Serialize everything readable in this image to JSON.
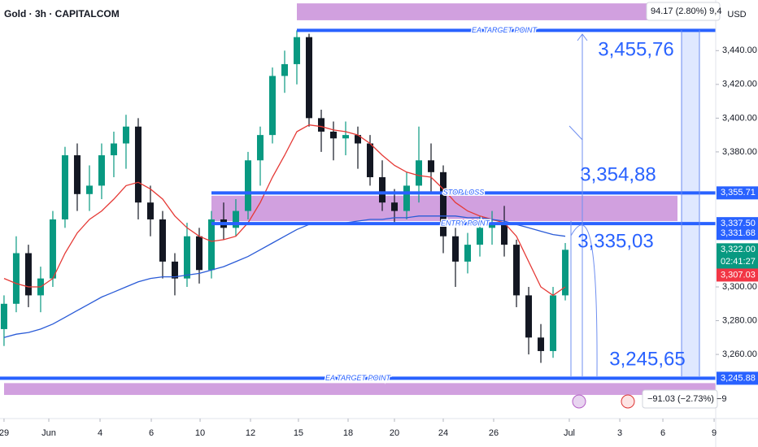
{
  "chart_data": {
    "type": "candlestick",
    "title": "Gold · 3h · CAPITALCOM",
    "currency": "USD",
    "top_change": "94.17 (2.80%) 9,4",
    "bottom_change": "−91.03 (−2.73%) −9",
    "ylim": [
      3222,
      3470
    ],
    "yticks": [
      {
        "value": 3260,
        "label": "3,260.00"
      },
      {
        "value": 3280,
        "label": "3,280.00"
      },
      {
        "value": 3300,
        "label": "3,300.00"
      },
      {
        "value": 3380,
        "label": "3,380.00"
      },
      {
        "value": 3400,
        "label": "3,400.00"
      },
      {
        "value": 3420,
        "label": "3,420.00"
      },
      {
        "value": 3440,
        "label": "3,440.00"
      }
    ],
    "xlim": [
      -0.33,
      58.33
    ],
    "xticks": [
      {
        "value": 0,
        "label": "29"
      },
      {
        "value": 3.67,
        "label": "Jun"
      },
      {
        "value": 7.87,
        "label": "4"
      },
      {
        "value": 12.07,
        "label": "6"
      },
      {
        "value": 16.07,
        "label": "10"
      },
      {
        "value": 20.2,
        "label": "12"
      },
      {
        "value": 24.13,
        "label": "15"
      },
      {
        "value": 28.2,
        "label": "18"
      },
      {
        "value": 32,
        "label": "20"
      },
      {
        "value": 36,
        "label": "24"
      },
      {
        "value": 40.13,
        "label": "26"
      },
      {
        "value": 46.33,
        "label": "Jul"
      },
      {
        "value": 50.47,
        "label": "3"
      },
      {
        "value": 54,
        "label": "6"
      },
      {
        "value": 58.2,
        "label": "9"
      }
    ],
    "up_color": "#089981",
    "down_color": "#131722",
    "ohlc": {
      "open": [
        3275,
        3290,
        3320,
        3295,
        3305,
        3340,
        3378,
        3355,
        3360,
        3378,
        3385,
        3395,
        3350,
        3340,
        3315,
        3305,
        3330,
        3310,
        3340,
        3335,
        3345,
        3375,
        3390,
        3425,
        3432,
        3448,
        3400,
        3392,
        3388,
        3390,
        3385,
        3365,
        3350,
        3345,
        3360,
        3375,
        3368,
        3330,
        3315,
        3325,
        3335,
        3338,
        3325,
        3295,
        3270,
        3262,
        3295
      ],
      "high": [
        3295,
        3330,
        3325,
        3312,
        3345,
        3383,
        3385,
        3372,
        3385,
        3392,
        3402,
        3400,
        3360,
        3345,
        3320,
        3338,
        3335,
        3345,
        3350,
        3352,
        3380,
        3395,
        3430,
        3440,
        3452,
        3450,
        3405,
        3398,
        3398,
        3395,
        3390,
        3375,
        3358,
        3368,
        3395,
        3385,
        3372,
        3335,
        3332,
        3342,
        3345,
        3348,
        3328,
        3300,
        3278,
        3300,
        3326
      ],
      "low": [
        3265,
        3285,
        3288,
        3285,
        3300,
        3335,
        3345,
        3345,
        3352,
        3365,
        3370,
        3340,
        3330,
        3305,
        3295,
        3300,
        3302,
        3305,
        3328,
        3330,
        3340,
        3360,
        3385,
        3415,
        3420,
        3395,
        3380,
        3375,
        3378,
        3370,
        3360,
        3345,
        3338,
        3340,
        3350,
        3355,
        3320,
        3300,
        3308,
        3318,
        3325,
        3318,
        3288,
        3260,
        3255,
        3258,
        3292
      ],
      "close": [
        3290,
        3320,
        3295,
        3305,
        3340,
        3378,
        3355,
        3360,
        3378,
        3385,
        3395,
        3350,
        3340,
        3315,
        3305,
        3330,
        3310,
        3340,
        3335,
        3345,
        3375,
        3390,
        3425,
        3432,
        3448,
        3400,
        3392,
        3388,
        3390,
        3385,
        3365,
        3350,
        3345,
        3360,
        3375,
        3368,
        3330,
        3315,
        3325,
        3335,
        3338,
        3325,
        3295,
        3270,
        3262,
        3295,
        3322
      ]
    },
    "lines": [
      {
        "color": "#e53935",
        "values": [
          3305,
          3302,
          3300,
          3300,
          3305,
          3320,
          3332,
          3340,
          3345,
          3352,
          3360,
          3362,
          3358,
          3352,
          3342,
          3335,
          3330,
          3327,
          3328,
          3330,
          3338,
          3350,
          3365,
          3378,
          3392,
          3396,
          3395,
          3393,
          3392,
          3390,
          3385,
          3378,
          3372,
          3368,
          3366,
          3365,
          3358,
          3350,
          3345,
          3342,
          3340,
          3338,
          3330,
          3315,
          3300,
          3295,
          3300
        ]
      },
      {
        "color": "#2a5bd7",
        "values": [
          3270,
          3272,
          3273,
          3275,
          3278,
          3282,
          3286,
          3290,
          3294,
          3297,
          3300,
          3303,
          3305,
          3306,
          3306,
          3307,
          3308,
          3310,
          3312,
          3315,
          3318,
          3322,
          3326,
          3330,
          3334,
          3337,
          3338,
          3338,
          3338,
          3339,
          3340,
          3340,
          3341,
          3341,
          3342,
          3342,
          3342,
          3342,
          3341,
          3341,
          3340,
          3339,
          3337,
          3335,
          3333,
          3331,
          3330
        ]
      }
    ],
    "zones": [
      {
        "from": 3458,
        "to": 3468,
        "color": "#c98fd9"
      },
      {
        "from": 3339,
        "to": 3354,
        "color": "#c98fd9"
      },
      {
        "from": 3236,
        "to": 3243,
        "color": "#c98fd9"
      }
    ],
    "levels": [
      {
        "value": 3452,
        "label": "EA TARGET POINT",
        "color": "#2962ff"
      },
      {
        "value": 3355.71,
        "label": "STOP LOSS",
        "color": "#2962ff"
      },
      {
        "value": 3337.5,
        "label": "ENTRY POINT",
        "color": "#2962ff"
      },
      {
        "value": 3245.88,
        "label": "EA TARGET POINT",
        "color": "#2962ff"
      }
    ],
    "annotations": [
      "3,455,76",
      "3,354,88",
      "3,335,03",
      "3,245,65"
    ],
    "price_labels": [
      {
        "value": 3355.71,
        "label": "3,355.71",
        "color": "#2962ff"
      },
      {
        "value": 3337.5,
        "label": "3,337.50",
        "color": "#2962ff"
      },
      {
        "value": 3331.68,
        "label": "3,331.68",
        "color": "#2962ff"
      },
      {
        "value": 3322,
        "label": "3,322.00",
        "color": "#089981",
        "countdown": "02:41:27"
      },
      {
        "value": 3307.03,
        "label": "3,307.03",
        "color": "#f23645"
      },
      {
        "value": 3245.88,
        "label": "3,245.88",
        "color": "#2962ff"
      }
    ]
  }
}
